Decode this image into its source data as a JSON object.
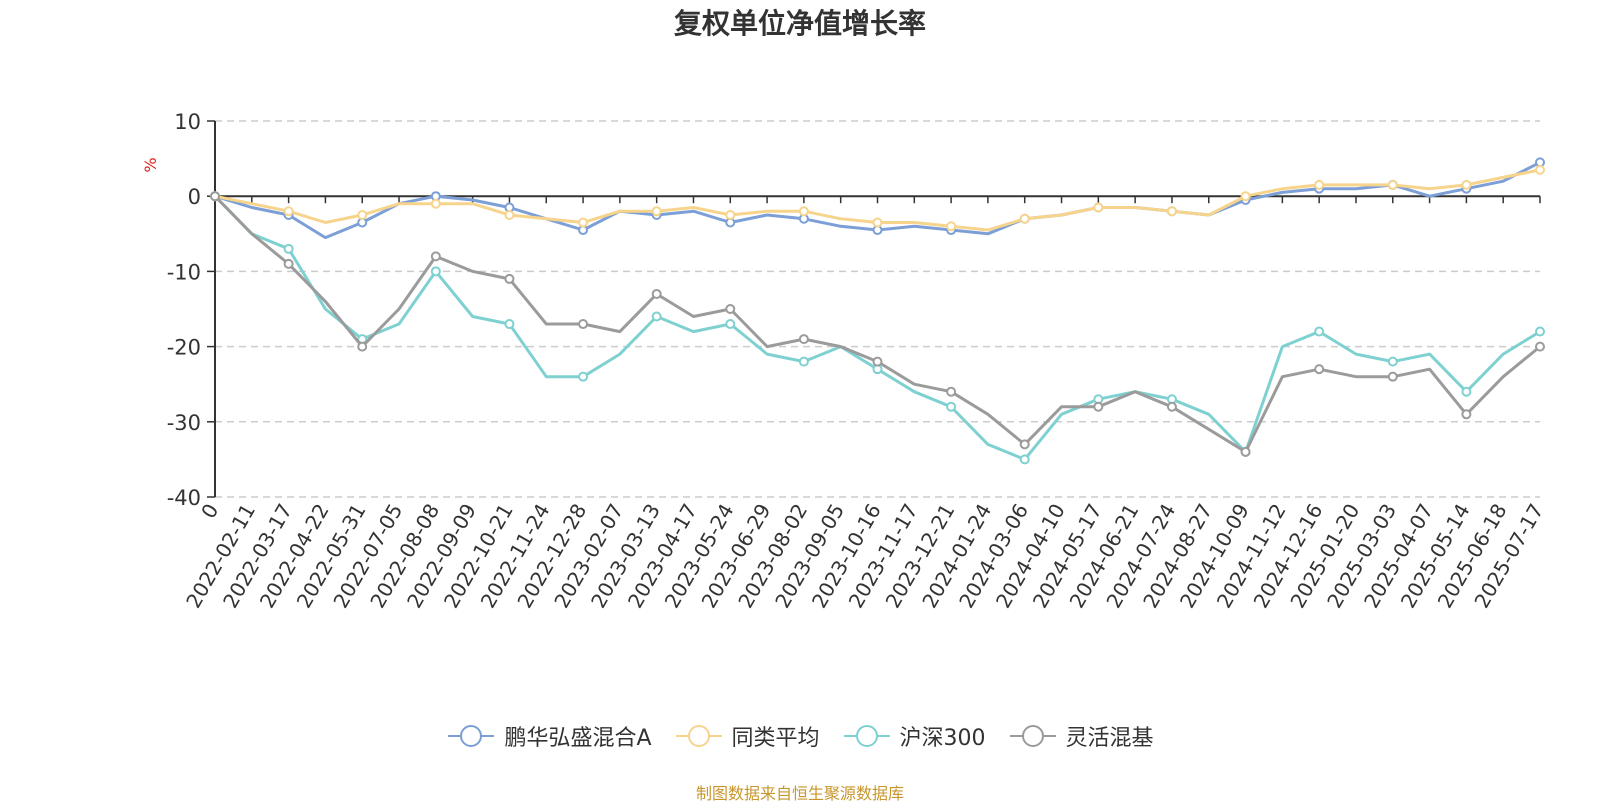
{
  "chart_data": {
    "type": "line",
    "title": "复权单位净值增长率",
    "ylabel": "%",
    "ylim": [
      -40,
      10
    ],
    "yticks": [
      10,
      0,
      -10,
      -20,
      -30,
      -40
    ],
    "grid": true,
    "legend_position": "bottom",
    "source_note": "制图数据来自恒生聚源数据库",
    "x_tick_labels": [
      "0",
      "2022-02-11",
      "2022-03-17",
      "2022-04-22",
      "2022-05-31",
      "2022-07-05",
      "2022-08-08",
      "2022-09-09",
      "2022-10-21",
      "2022-11-24",
      "2022-12-28",
      "2023-02-07",
      "2023-03-13",
      "2023-04-17",
      "2023-05-24",
      "2023-06-29",
      "2023-08-02",
      "2023-09-05",
      "2023-10-16",
      "2023-11-17",
      "2023-12-21",
      "2024-01-24",
      "2024-03-06",
      "2024-04-10",
      "2024-05-17",
      "2024-06-21",
      "2024-07-24",
      "2024-08-27",
      "2024-10-09",
      "2024-11-12",
      "2024-12-16",
      "2025-01-20",
      "2025-03-03",
      "2025-04-07",
      "2025-05-14",
      "2025-06-18",
      "2025-07-17"
    ],
    "series": [
      {
        "name": "鹏华弘盛混合A",
        "color": "#7b9fd6",
        "values": [
          0,
          -1.5,
          -2.5,
          -5.5,
          -3.5,
          -1,
          0,
          -0.5,
          -1.5,
          -3,
          -4.5,
          -2,
          -2.5,
          -2,
          -3.5,
          -2.5,
          -3,
          -4,
          -4.5,
          -4,
          -4.5,
          -5,
          -3,
          -2.5,
          -1.5,
          -1.5,
          -2,
          -2.5,
          -0.5,
          0.5,
          1,
          1,
          1.5,
          0,
          1,
          2,
          4.5
        ]
      },
      {
        "name": "同类平均",
        "color": "#f7d48c",
        "values": [
          0,
          -1,
          -2,
          -3.5,
          -2.5,
          -1,
          -1,
          -1,
          -2.5,
          -3,
          -3.5,
          -2,
          -2,
          -1.5,
          -2.5,
          -2,
          -2,
          -3,
          -3.5,
          -3.5,
          -4,
          -4.5,
          -3,
          -2.5,
          -1.5,
          -1.5,
          -2,
          -2.5,
          0,
          1,
          1.5,
          1.5,
          1.5,
          1,
          1.5,
          2.5,
          3.5
        ]
      },
      {
        "name": "沪深300",
        "color": "#7fd1d1",
        "values": [
          0,
          -5,
          -7,
          -15,
          -19,
          -17,
          -10,
          -16,
          -17,
          -24,
          -24,
          -21,
          -16,
          -18,
          -17,
          -21,
          -22,
          -20,
          -23,
          -26,
          -28,
          -33,
          -35,
          -29,
          -27,
          -26,
          -27,
          -29,
          -34,
          -20,
          -18,
          -21,
          -22,
          -21,
          -26,
          -21,
          -18
        ]
      },
      {
        "name": "灵活混基",
        "color": "#9b9b9b",
        "values": [
          0,
          -5,
          -9,
          -14,
          -20,
          -15,
          -8,
          -10,
          -11,
          -17,
          -17,
          -18,
          -13,
          -16,
          -15,
          -20,
          -19,
          -20,
          -22,
          -25,
          -26,
          -29,
          -33,
          -28,
          -28,
          -26,
          -28,
          -31,
          -34,
          -24,
          -23,
          -24,
          -24,
          -23,
          -29,
          -24,
          -20
        ]
      }
    ]
  }
}
